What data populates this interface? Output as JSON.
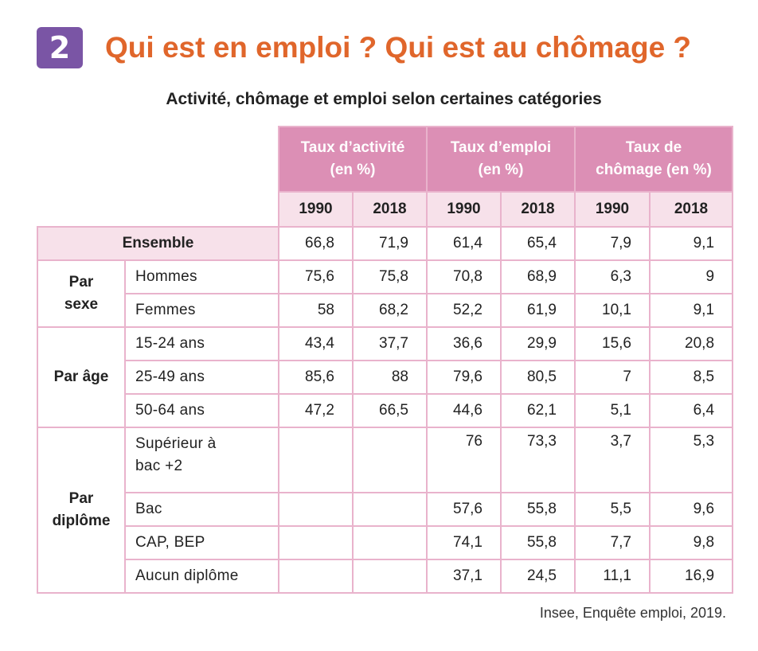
{
  "header": {
    "number": "2",
    "title": "Qui est en emploi ? Qui est au chômage ?",
    "subtitle": "Activité, chômage et emploi selon certaines catégories"
  },
  "table": {
    "groups": [
      {
        "line1": "Taux d’activité",
        "line2": "(en %)"
      },
      {
        "line1": "Taux d’emploi",
        "line2": "(en %)"
      },
      {
        "line1": "Taux de",
        "line2": "chômage (en %)"
      }
    ],
    "years": [
      "1990",
      "2018",
      "1990",
      "2018",
      "1990",
      "2018"
    ],
    "ensemble": {
      "label": "Ensemble",
      "values": [
        "66,8",
        "71,9",
        "61,4",
        "65,4",
        "7,9",
        "9,1"
      ]
    },
    "par_sexe": {
      "label_line1": "Par",
      "label_line2": "sexe",
      "rows": [
        {
          "label": "Hommes",
          "values": [
            "75,6",
            "75,8",
            "70,8",
            "68,9",
            "6,3",
            "9"
          ]
        },
        {
          "label": "Femmes",
          "values": [
            "58",
            "68,2",
            "52,2",
            "61,9",
            "10,1",
            "9,1"
          ]
        }
      ]
    },
    "par_age": {
      "label": "Par âge",
      "rows": [
        {
          "label": "15-24 ans",
          "values": [
            "43,4",
            "37,7",
            "36,6",
            "29,9",
            "15,6",
            "20,8"
          ]
        },
        {
          "label": "25-49 ans",
          "values": [
            "85,6",
            "88",
            "79,6",
            "80,5",
            "7",
            "8,5"
          ]
        },
        {
          "label": "50-64 ans",
          "values": [
            "47,2",
            "66,5",
            "44,6",
            "62,1",
            "5,1",
            "6,4"
          ]
        }
      ]
    },
    "par_diplome": {
      "label_line1": "Par",
      "label_line2": "diplôme",
      "rows": [
        {
          "label_line1": "Supérieur à",
          "label_line2": "bac +2",
          "values": [
            "",
            "",
            "76",
            "73,3",
            "3,7",
            "5,3"
          ]
        },
        {
          "label": "Bac",
          "values": [
            "",
            "",
            "57,6",
            "55,8",
            "5,5",
            "9,6"
          ]
        },
        {
          "label": "CAP, BEP",
          "values": [
            "",
            "",
            "74,1",
            "55,8",
            "7,7",
            "9,8"
          ]
        },
        {
          "label": "Aucun diplôme",
          "values": [
            "",
            "",
            "37,1",
            "24,5",
            "11,1",
            "16,9"
          ]
        }
      ]
    }
  },
  "source": "Insee, Enquête emploi, 2019."
}
